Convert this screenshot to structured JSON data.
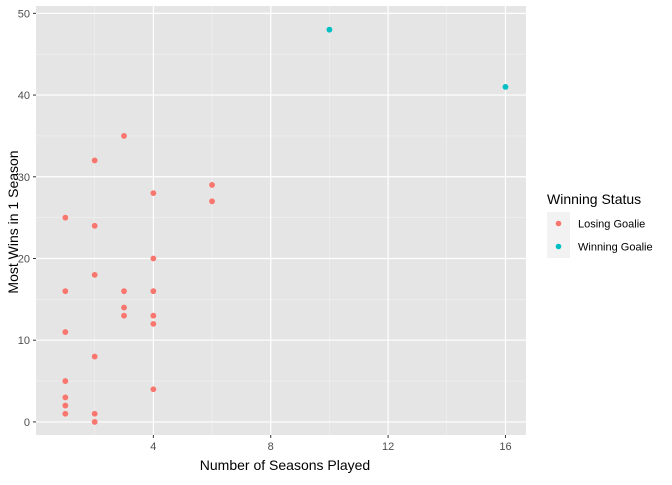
{
  "chart_data": {
    "type": "scatter",
    "title": "",
    "xlabel": "Number of Seasons Played",
    "ylabel": "Most Wins in 1 Season",
    "xlim": [
      0.0,
      16.7
    ],
    "ylim": [
      -1.6,
      50.9
    ],
    "x_ticks": [
      4,
      8,
      12,
      16
    ],
    "x_tick_labels": [
      "4",
      "8",
      "12",
      "16"
    ],
    "x_minor_ticks": [
      2,
      6,
      10,
      14
    ],
    "y_ticks": [
      0,
      10,
      20,
      30,
      40,
      50
    ],
    "y_tick_labels": [
      "0",
      "10",
      "20",
      "30",
      "40",
      "50"
    ],
    "y_minor_ticks": [
      5,
      15,
      25,
      35,
      45
    ],
    "grid": true,
    "panel_background": "#e5e5e5",
    "legend": {
      "title": "Winning Status",
      "position": "right"
    },
    "series": [
      {
        "name": "Losing Goalie",
        "color": "#f8766d",
        "points": [
          [
            1,
            25
          ],
          [
            1,
            16
          ],
          [
            1,
            11
          ],
          [
            1,
            5
          ],
          [
            1,
            3
          ],
          [
            1,
            2
          ],
          [
            1,
            1
          ],
          [
            2,
            32
          ],
          [
            2,
            24
          ],
          [
            2,
            18
          ],
          [
            2,
            8
          ],
          [
            2,
            1
          ],
          [
            2,
            0
          ],
          [
            3,
            35
          ],
          [
            3,
            16
          ],
          [
            3,
            14
          ],
          [
            3,
            13
          ],
          [
            4,
            28
          ],
          [
            4,
            20
          ],
          [
            4,
            16
          ],
          [
            4,
            13
          ],
          [
            4,
            12
          ],
          [
            4,
            4
          ],
          [
            6,
            29
          ],
          [
            6,
            27
          ]
        ]
      },
      {
        "name": "Winning Goalie",
        "color": "#00bfc4",
        "points": [
          [
            10,
            48
          ],
          [
            16,
            41
          ]
        ]
      }
    ]
  }
}
